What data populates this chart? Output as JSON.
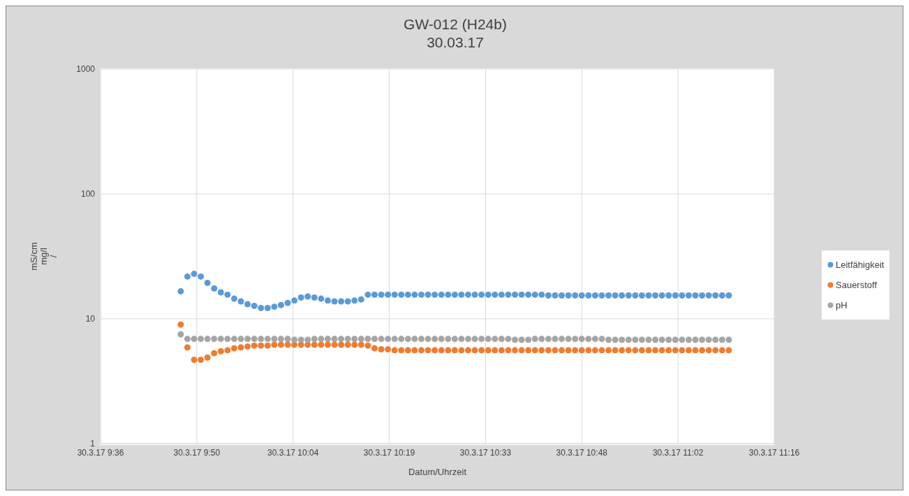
{
  "chart_data": {
    "type": "scatter",
    "title": "GW-012 (H24b)",
    "subtitle": "30.03.17",
    "xlabel": "Datum/Uhrzeit",
    "ylabel": "mS/cm\nmg/l\n/",
    "x": [
      "--03-30T09:48",
      "--03-30T09:49",
      "--03-30T09:50",
      "--03-30T09:51",
      "--03-30T09:52",
      "--03-30T09:53",
      "--03-30T09:54",
      "--03-30T09:55",
      "--03-30T09:56",
      "--03-30T09:57",
      "--03-30T09:58",
      "--03-30T09:59",
      "--03-30T10:00",
      "--03-30T10:01",
      "--03-30T10:02",
      "--03-30T10:03",
      "--03-30T10:04",
      "--03-30T10:05",
      "--03-30T10:06",
      "--03-30T10:07",
      "--03-30T10:08",
      "--03-30T10:09",
      "--03-30T10:10",
      "--03-30T10:11",
      "--03-30T10:12",
      "--03-30T10:13",
      "--03-30T10:14",
      "--03-30T10:15",
      "--03-30T10:16",
      "--03-30T10:17",
      "--03-30T10:18",
      "--03-30T10:19",
      "--03-30T10:20",
      "--03-30T10:21",
      "--03-30T10:22",
      "--03-30T10:23",
      "--03-30T10:24",
      "--03-30T10:25",
      "--03-30T10:26",
      "--03-30T10:27",
      "--03-30T10:28",
      "--03-30T10:29",
      "--03-30T10:30",
      "--03-30T10:31",
      "--03-30T10:32",
      "--03-30T10:33",
      "--03-30T10:34",
      "--03-30T10:35",
      "--03-30T10:36",
      "--03-30T10:37",
      "--03-30T10:38",
      "--03-30T10:39",
      "--03-30T10:40",
      "--03-30T10:41",
      "--03-30T10:42",
      "--03-30T10:43",
      "--03-30T10:44",
      "--03-30T10:45",
      "--03-30T10:46",
      "--03-30T10:47",
      "--03-30T10:48",
      "--03-30T10:49",
      "--03-30T10:50",
      "--03-30T10:51",
      "--03-30T10:52",
      "--03-30T10:53",
      "--03-30T10:54",
      "--03-30T10:55",
      "--03-30T10:56",
      "--03-30T10:57",
      "--03-30T10:58",
      "--03-30T10:59",
      "--03-30T11:00",
      "--03-30T11:01",
      "--03-30T11:02",
      "--03-30T11:03",
      "--03-30T11:04",
      "--03-30T11:05",
      "--03-30T11:06",
      "--03-30T11:07",
      "--03-30T11:08",
      "--03-30T11:09",
      "--03-30T11:10"
    ],
    "series": [
      {
        "name": "Leitfähigkeit",
        "color": "#5b9bd5",
        "values": [
          16.6,
          21.8,
          22.9,
          21.8,
          19.4,
          17.5,
          16.3,
          15.6,
          14.5,
          13.8,
          13.1,
          12.7,
          12.2,
          12.2,
          12.5,
          12.9,
          13.4,
          14.0,
          14.8,
          15.1,
          14.8,
          14.5,
          14.0,
          13.8,
          13.8,
          13.8,
          14.0,
          14.3,
          15.6,
          15.6,
          15.6,
          15.6,
          15.6,
          15.6,
          15.6,
          15.6,
          15.6,
          15.6,
          15.6,
          15.6,
          15.6,
          15.6,
          15.6,
          15.6,
          15.6,
          15.6,
          15.6,
          15.6,
          15.6,
          15.6,
          15.6,
          15.6,
          15.6,
          15.6,
          15.6,
          15.4,
          15.4,
          15.4,
          15.4,
          15.4,
          15.4,
          15.4,
          15.4,
          15.4,
          15.4,
          15.4,
          15.4,
          15.4,
          15.4,
          15.4,
          15.4,
          15.4,
          15.4,
          15.4,
          15.4,
          15.4,
          15.4,
          15.4,
          15.4,
          15.4,
          15.4,
          15.4,
          15.4
        ]
      },
      {
        "name": "Sauerstoff",
        "color": "#ed7d31",
        "values": [
          9.0,
          5.9,
          4.7,
          4.7,
          4.9,
          5.3,
          5.5,
          5.6,
          5.8,
          5.9,
          6.0,
          6.1,
          6.1,
          6.1,
          6.2,
          6.2,
          6.2,
          6.2,
          6.2,
          6.2,
          6.2,
          6.2,
          6.2,
          6.2,
          6.2,
          6.2,
          6.2,
          6.2,
          6.1,
          5.8,
          5.7,
          5.7,
          5.6,
          5.6,
          5.6,
          5.6,
          5.6,
          5.6,
          5.6,
          5.6,
          5.6,
          5.6,
          5.6,
          5.6,
          5.6,
          5.6,
          5.6,
          5.6,
          5.6,
          5.6,
          5.6,
          5.6,
          5.6,
          5.6,
          5.6,
          5.6,
          5.6,
          5.6,
          5.6,
          5.6,
          5.6,
          5.6,
          5.6,
          5.6,
          5.6,
          5.6,
          5.6,
          5.6,
          5.6,
          5.6,
          5.6,
          5.6,
          5.6,
          5.6,
          5.6,
          5.6,
          5.6,
          5.6,
          5.6,
          5.6,
          5.6,
          5.6,
          5.6
        ]
      },
      {
        "name": "pH",
        "color": "#a5a5a5",
        "values": [
          7.5,
          6.9,
          6.9,
          6.9,
          6.9,
          6.9,
          6.9,
          6.9,
          6.9,
          6.9,
          6.9,
          6.9,
          6.9,
          6.9,
          6.9,
          6.9,
          6.9,
          6.8,
          6.8,
          6.8,
          6.9,
          6.9,
          6.9,
          6.9,
          6.9,
          6.9,
          6.9,
          6.9,
          6.9,
          6.9,
          6.9,
          6.9,
          6.9,
          6.9,
          6.9,
          6.9,
          6.9,
          6.9,
          6.9,
          6.9,
          6.9,
          6.9,
          6.9,
          6.9,
          6.9,
          6.9,
          6.9,
          6.9,
          6.9,
          6.9,
          6.8,
          6.8,
          6.8,
          6.9,
          6.9,
          6.9,
          6.9,
          6.9,
          6.9,
          6.9,
          6.9,
          6.9,
          6.9,
          6.9,
          6.8,
          6.8,
          6.8,
          6.8,
          6.8,
          6.8,
          6.8,
          6.8,
          6.8,
          6.8,
          6.8,
          6.8,
          6.8,
          6.8,
          6.8,
          6.8,
          6.8,
          6.8,
          6.8
        ]
      }
    ],
    "xlim": [
      "--03-30T09:36",
      "--03-30T11:16:48"
    ],
    "xticks": [
      {
        "value": "--03-30T09:36",
        "label": "30.3.17 9:36"
      },
      {
        "value": "--03-30T09:50:24",
        "label": "30.3.17 9:50"
      },
      {
        "value": "--03-30T10:04:48",
        "label": "30.3.17 10:04"
      },
      {
        "value": "--03-30T10:19:12",
        "label": "30.3.17 10:19"
      },
      {
        "value": "--03-30T10:33:36",
        "label": "30.3.17 10:33"
      },
      {
        "value": "--03-30T10:48",
        "label": "30.3.17 10:48"
      },
      {
        "value": "--03-30T11:02:24",
        "label": "30.3.17 11:02"
      },
      {
        "value": "--03-30T11:16:48",
        "label": "30.3.17 11:16"
      }
    ],
    "ylim": [
      1,
      1000
    ],
    "yticks": [
      1,
      10,
      100,
      1000
    ],
    "log": true,
    "grid": true,
    "legend": "right",
    "marker": "circle"
  }
}
